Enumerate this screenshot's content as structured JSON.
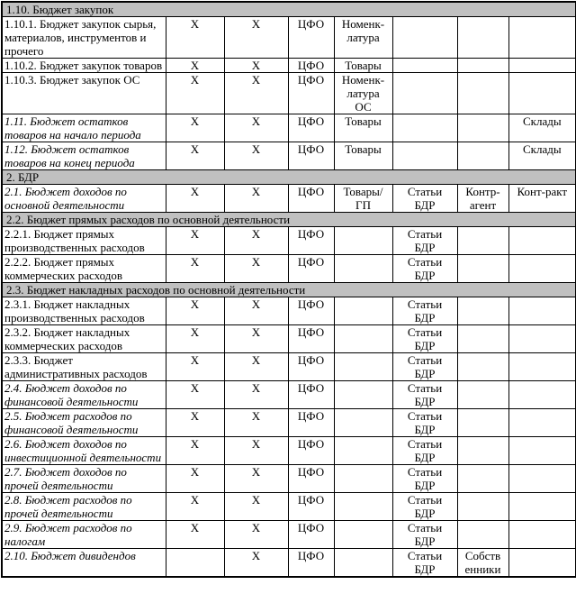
{
  "table": {
    "col_names": [
      "mark-primary",
      "mark-secondary",
      "cfo",
      "analytics-nomenclature",
      "analytics-bdr-items",
      "analytics-counterparty",
      "analytics-extra"
    ],
    "rows": [
      {
        "type": "section",
        "label": "1.10. Бюджет закупок"
      },
      {
        "type": "data",
        "italic": false,
        "name": "1.10.1. Бюджет закупок сырья, материалов, инструментов и прочего",
        "cols": [
          "X",
          "X",
          "ЦФО",
          "Номенк-\nлатура",
          "",
          "",
          ""
        ]
      },
      {
        "type": "data",
        "italic": false,
        "name": "1.10.2. Бюджет закупок товаров",
        "cols": [
          "X",
          "X",
          "ЦФО",
          "Товары",
          "",
          "",
          ""
        ]
      },
      {
        "type": "data",
        "italic": false,
        "name": "1.10.3. Бюджет закупок ОС",
        "cols": [
          "X",
          "X",
          "ЦФО",
          "Номенк-\nлатура\nОС",
          "",
          "",
          ""
        ]
      },
      {
        "type": "data",
        "italic": true,
        "name": "1.11. Бюджет остатков товаров на начало периода",
        "cols": [
          "X",
          "X",
          "ЦФО",
          "Товары",
          "",
          "",
          "Склады"
        ]
      },
      {
        "type": "data",
        "italic": true,
        "name": "1.12. Бюджет остатков товаров на конец периода",
        "cols": [
          "X",
          "X",
          "ЦФО",
          "Товары",
          "",
          "",
          "Склады"
        ]
      },
      {
        "type": "section",
        "label": "2. БДР"
      },
      {
        "type": "data",
        "italic": true,
        "name": "2.1. Бюджет доходов по основной деятельности",
        "cols": [
          "X",
          "X",
          "ЦФО",
          "Товары/\nГП",
          "Статьи\nБДР",
          "Контр-\nагент",
          "Конт-ракт"
        ]
      },
      {
        "type": "section",
        "label": "2.2. Бюджет прямых расходов по основной деятельности"
      },
      {
        "type": "data",
        "italic": false,
        "name": "2.2.1. Бюджет прямых производственных расходов",
        "cols": [
          "X",
          "X",
          "ЦФО",
          "",
          "Статьи\nБДР",
          "",
          ""
        ]
      },
      {
        "type": "data",
        "italic": false,
        "name": "2.2.2. Бюджет прямых коммерческих расходов",
        "cols": [
          "X",
          "X",
          "ЦФО",
          "",
          "Статьи\nБДР",
          "",
          ""
        ]
      },
      {
        "type": "section",
        "label": "2.3. Бюджет накладных расходов по основной деятельности"
      },
      {
        "type": "data",
        "italic": false,
        "name": "2.3.1. Бюджет накладных производственных расходов",
        "cols": [
          "X",
          "X",
          "ЦФО",
          "",
          "Статьи\nБДР",
          "",
          ""
        ]
      },
      {
        "type": "data",
        "italic": false,
        "name": "2.3.2. Бюджет накладных коммерческих расходов",
        "cols": [
          "X",
          "X",
          "ЦФО",
          "",
          "Статьи\nБДР",
          "",
          ""
        ]
      },
      {
        "type": "data",
        "italic": false,
        "name": "2.3.3. Бюджет административных расходов",
        "cols": [
          "X",
          "X",
          "ЦФО",
          "",
          "Статьи\nБДР",
          "",
          ""
        ]
      },
      {
        "type": "data",
        "italic": true,
        "name": "2.4. Бюджет доходов по финансовой деятельности",
        "cols": [
          "X",
          "X",
          "ЦФО",
          "",
          "Статьи\nБДР",
          "",
          ""
        ]
      },
      {
        "type": "data",
        "italic": true,
        "name": "2.5. Бюджет расходов по финансовой деятельности",
        "cols": [
          "X",
          "X",
          "ЦФО",
          "",
          "Статьи\nБДР",
          "",
          ""
        ]
      },
      {
        "type": "data",
        "italic": true,
        "name": "2.6. Бюджет доходов по инвестиционной деятельности",
        "cols": [
          "X",
          "X",
          "ЦФО",
          "",
          "Статьи\nБДР",
          "",
          ""
        ]
      },
      {
        "type": "data",
        "italic": true,
        "name": "2.7. Бюджет доходов по прочей деятельности",
        "cols": [
          "X",
          "X",
          "ЦФО",
          "",
          "Статьи\nБДР",
          "",
          ""
        ]
      },
      {
        "type": "data",
        "italic": true,
        "name": "2.8. Бюджет расходов по прочей деятельности",
        "cols": [
          "X",
          "X",
          "ЦФО",
          "",
          "Статьи\nБДР",
          "",
          ""
        ]
      },
      {
        "type": "data",
        "italic": true,
        "name": "2.9. Бюджет расходов по налогам",
        "cols": [
          "X",
          "X",
          "ЦФО",
          "",
          "Статьи\nБДР",
          "",
          ""
        ]
      },
      {
        "type": "data",
        "italic": true,
        "name": "2.10. Бюджет дивидендов",
        "cols": [
          "",
          "X",
          "ЦФО",
          "",
          "Статьи\nБДР",
          "Собств\nенники",
          ""
        ]
      }
    ]
  }
}
